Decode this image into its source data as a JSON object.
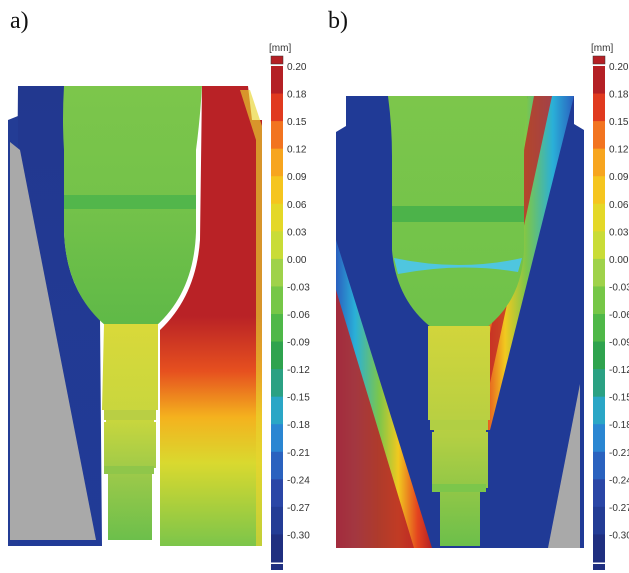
{
  "panels": [
    {
      "label": "a)"
    },
    {
      "label": "b)"
    }
  ],
  "colorbar": {
    "unit": "[mm]",
    "ticks": [
      "0.20",
      "0.18",
      "0.15",
      "0.12",
      "0.09",
      "0.06",
      "0.03",
      "0.00",
      "-0.03",
      "-0.06",
      "-0.09",
      "-0.12",
      "-0.15",
      "-0.18",
      "-0.21",
      "-0.24",
      "-0.27",
      "-0.30"
    ],
    "colors": [
      "#b42025",
      "#e03a1f",
      "#f27420",
      "#f7a51f",
      "#f5c51f",
      "#e4d828",
      "#c9dc37",
      "#9fd24a",
      "#76c747",
      "#4fb848",
      "#2fa34e",
      "#2ba183",
      "#2aa6c6",
      "#2a86d2",
      "#2a62bf",
      "#2a46a6",
      "#233c95",
      "#1f2f80"
    ]
  }
}
